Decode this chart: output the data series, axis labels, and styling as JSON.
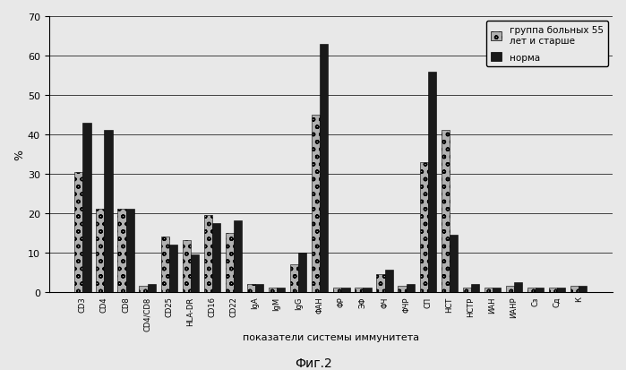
{
  "categories": [
    "CD3",
    "CD4",
    "CD8",
    "CD4/CD8",
    "CD25",
    "HLA-DR",
    "CD16",
    "CD22",
    "IgA",
    "IgM",
    "IgG",
    "ΦАН",
    "ΦР",
    "ЭΦ",
    "ΦЧ",
    "ΦЧР",
    "СП",
    "НСТ",
    "НСТР",
    "ИАН",
    "ИАНР",
    "Сз",
    "Сд",
    "К"
  ],
  "group1": [
    30.5,
    21,
    21,
    1.5,
    14,
    13,
    19.5,
    15,
    2,
    1,
    7,
    45,
    1,
    1,
    4.5,
    1.5,
    33,
    41,
    1,
    1,
    1.5,
    1,
    1,
    1.5
  ],
  "group2": [
    43,
    41,
    21,
    2,
    12,
    9.5,
    17.5,
    18,
    2,
    1,
    10,
    63,
    1,
    1,
    5.5,
    2,
    56,
    14.5,
    2,
    1,
    2.5,
    1,
    1,
    1.5
  ],
  "ylabel": "%",
  "xlabel": "показатели системы иммунитета",
  "ylim": [
    0,
    70
  ],
  "yticks": [
    0,
    10,
    20,
    30,
    40,
    50,
    60,
    70
  ],
  "legend_label1": "группа больных 55\nлет и старше",
  "legend_label2": "норма",
  "caption": "Фиг.2",
  "figsize": [
    6.99,
    4.14
  ],
  "dpi": 100,
  "bg_color": "#e8e8e8"
}
